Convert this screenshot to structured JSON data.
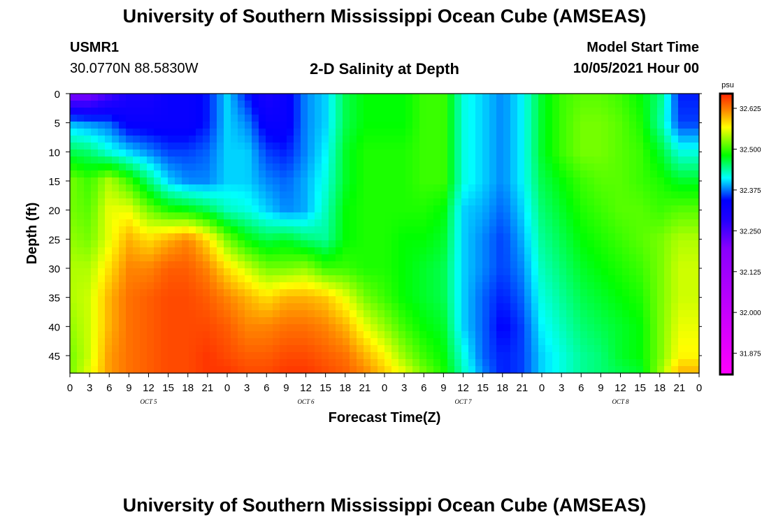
{
  "header": {
    "title": "University of Southern Mississippi Ocean Cube (AMSEAS)",
    "station_id": "USMR1",
    "coordinates": "30.0770N  88.5830W",
    "plot_title": "2-D Salinity at Depth",
    "model_label": "Model Start Time",
    "model_time": "10/05/2021 Hour 00"
  },
  "footer": {
    "title": "University of Southern Mississippi Ocean Cube (AMSEAS)"
  },
  "chart_data": {
    "type": "heatmap",
    "title": "2-D Salinity at Depth",
    "xlabel": "Forecast Time(Z)",
    "ylabel": "Depth (ft)",
    "x_ticks": [
      "0",
      "3",
      "6",
      "9",
      "12",
      "15",
      "18",
      "21",
      "0",
      "3",
      "6",
      "9",
      "12",
      "15",
      "18",
      "21",
      "0",
      "3",
      "6",
      "9",
      "12",
      "15",
      "18",
      "21",
      "0",
      "3",
      "6",
      "9",
      "12",
      "15",
      "18",
      "21",
      "0"
    ],
    "date_labels": [
      {
        "label": "OCT 5",
        "tick_index": 4
      },
      {
        "label": "OCT 6",
        "tick_index": 12
      },
      {
        "label": "OCT 7",
        "tick_index": 20
      },
      {
        "label": "OCT 8",
        "tick_index": 28
      }
    ],
    "y_ticks": [
      0,
      5,
      10,
      15,
      20,
      25,
      30,
      35,
      40,
      45
    ],
    "ylim": [
      0,
      48
    ],
    "xlim_hours": [
      0,
      96
    ],
    "colorbar": {
      "unit": "psu",
      "ticks": [
        "32.625",
        "32.500",
        "32.375",
        "32.250",
        "32.125",
        "32.000",
        "31.875"
      ],
      "tick_values": [
        32.625,
        32.5,
        32.375,
        32.25,
        32.125,
        32.0,
        31.875
      ],
      "range": [
        31.81,
        32.67
      ],
      "colors": [
        "#ff00ff",
        "#cc00ff",
        "#8800ff",
        "#2200ff",
        "#0000ff",
        "#00ffff",
        "#00ff00",
        "#ffff00",
        "#ff8800",
        "#ff2200"
      ],
      "color_stops": [
        0,
        0.2,
        0.45,
        0.55,
        0.62,
        0.7,
        0.78,
        0.88,
        0.94,
        1
      ]
    },
    "salinity_grid": {
      "depths_ft": [
        0,
        5,
        10,
        15,
        20,
        25,
        30,
        35,
        40,
        45,
        48
      ],
      "hours": [
        0,
        3,
        6,
        9,
        12,
        15,
        18,
        21,
        24,
        27,
        30,
        33,
        36,
        39,
        42,
        45,
        48,
        51,
        54,
        57,
        60,
        63,
        66,
        69,
        72,
        75,
        78,
        81,
        84,
        87,
        90,
        93,
        96
      ],
      "values": [
        [
          32.2,
          32.2,
          32.25,
          32.3,
          32.3,
          32.33,
          32.33,
          32.35,
          32.4,
          32.35,
          32.3,
          32.33,
          32.38,
          32.4,
          32.46,
          32.48,
          32.48,
          32.48,
          32.5,
          32.5,
          32.42,
          32.4,
          32.38,
          32.41,
          32.47,
          32.5,
          32.51,
          32.51,
          32.5,
          32.48,
          32.45,
          32.35,
          32.35
        ],
        [
          32.39,
          32.38,
          32.37,
          32.33,
          32.33,
          32.33,
          32.33,
          32.35,
          32.4,
          32.38,
          32.33,
          32.33,
          32.38,
          32.4,
          32.46,
          32.48,
          32.48,
          32.48,
          32.5,
          32.5,
          32.42,
          32.4,
          32.38,
          32.41,
          32.47,
          32.5,
          32.52,
          32.52,
          32.51,
          32.49,
          32.44,
          32.36,
          32.36
        ],
        [
          32.46,
          32.45,
          32.42,
          32.4,
          32.38,
          32.36,
          32.36,
          32.37,
          32.4,
          32.4,
          32.36,
          32.35,
          32.38,
          32.41,
          32.47,
          32.49,
          32.49,
          32.49,
          32.5,
          32.5,
          32.42,
          32.4,
          32.38,
          32.41,
          32.47,
          32.5,
          32.52,
          32.52,
          32.51,
          32.5,
          32.47,
          32.42,
          32.42
        ],
        [
          32.52,
          32.5,
          32.54,
          32.5,
          32.45,
          32.4,
          32.38,
          32.38,
          32.4,
          32.4,
          32.38,
          32.37,
          32.39,
          32.42,
          32.47,
          32.49,
          32.49,
          32.49,
          32.5,
          32.5,
          32.42,
          32.4,
          32.38,
          32.41,
          32.46,
          32.48,
          32.5,
          32.51,
          32.51,
          32.5,
          32.49,
          32.47,
          32.47
        ],
        [
          32.52,
          32.51,
          32.56,
          32.56,
          32.52,
          32.49,
          32.48,
          32.46,
          32.43,
          32.42,
          32.4,
          32.38,
          32.39,
          32.43,
          32.48,
          32.49,
          32.49,
          32.49,
          32.49,
          32.48,
          32.4,
          32.39,
          32.37,
          32.4,
          32.45,
          32.47,
          32.49,
          32.5,
          32.51,
          32.51,
          32.5,
          32.51,
          32.51
        ],
        [
          32.53,
          32.52,
          32.56,
          32.6,
          32.58,
          32.6,
          32.62,
          32.58,
          32.52,
          32.48,
          32.46,
          32.47,
          32.45,
          32.44,
          32.48,
          32.49,
          32.49,
          32.48,
          32.48,
          32.47,
          32.4,
          32.38,
          32.36,
          32.39,
          32.44,
          32.46,
          32.48,
          32.49,
          32.5,
          32.51,
          32.52,
          32.54,
          32.54
        ],
        [
          32.54,
          32.54,
          32.58,
          32.62,
          32.62,
          32.64,
          32.64,
          32.62,
          32.58,
          32.55,
          32.52,
          32.52,
          32.53,
          32.5,
          32.5,
          32.49,
          32.49,
          32.48,
          32.47,
          32.46,
          32.4,
          32.38,
          32.36,
          32.38,
          32.43,
          32.45,
          32.47,
          32.48,
          32.49,
          32.5,
          32.52,
          32.55,
          32.55
        ],
        [
          32.54,
          32.55,
          32.6,
          32.63,
          32.64,
          32.65,
          32.65,
          32.64,
          32.62,
          32.6,
          32.58,
          32.6,
          32.6,
          32.59,
          32.56,
          32.52,
          32.5,
          32.48,
          32.47,
          32.46,
          32.4,
          32.37,
          32.35,
          32.37,
          32.42,
          32.44,
          32.46,
          32.47,
          32.48,
          32.49,
          32.52,
          32.55,
          32.55
        ],
        [
          32.53,
          32.55,
          32.6,
          32.63,
          32.64,
          32.65,
          32.65,
          32.65,
          32.64,
          32.62,
          32.62,
          32.63,
          32.63,
          32.62,
          32.6,
          32.56,
          32.53,
          32.5,
          32.48,
          32.47,
          32.4,
          32.37,
          32.34,
          32.36,
          32.41,
          32.43,
          32.45,
          32.46,
          32.47,
          32.48,
          32.52,
          32.56,
          32.56
        ],
        [
          32.52,
          32.55,
          32.61,
          32.63,
          32.64,
          32.65,
          32.65,
          32.66,
          32.65,
          32.64,
          32.64,
          32.65,
          32.65,
          32.64,
          32.63,
          32.6,
          32.57,
          32.53,
          32.5,
          32.48,
          32.42,
          32.37,
          32.35,
          32.36,
          32.4,
          32.42,
          32.44,
          32.45,
          32.47,
          32.48,
          32.52,
          32.57,
          32.57
        ],
        [
          32.52,
          32.56,
          32.61,
          32.63,
          32.64,
          32.65,
          32.65,
          32.66,
          32.66,
          32.65,
          32.65,
          32.66,
          32.66,
          32.65,
          32.64,
          32.62,
          32.59,
          32.56,
          32.52,
          32.49,
          32.43,
          32.38,
          32.35,
          32.36,
          32.4,
          32.42,
          32.44,
          32.45,
          32.46,
          32.47,
          32.53,
          32.6,
          32.6
        ]
      ]
    }
  }
}
